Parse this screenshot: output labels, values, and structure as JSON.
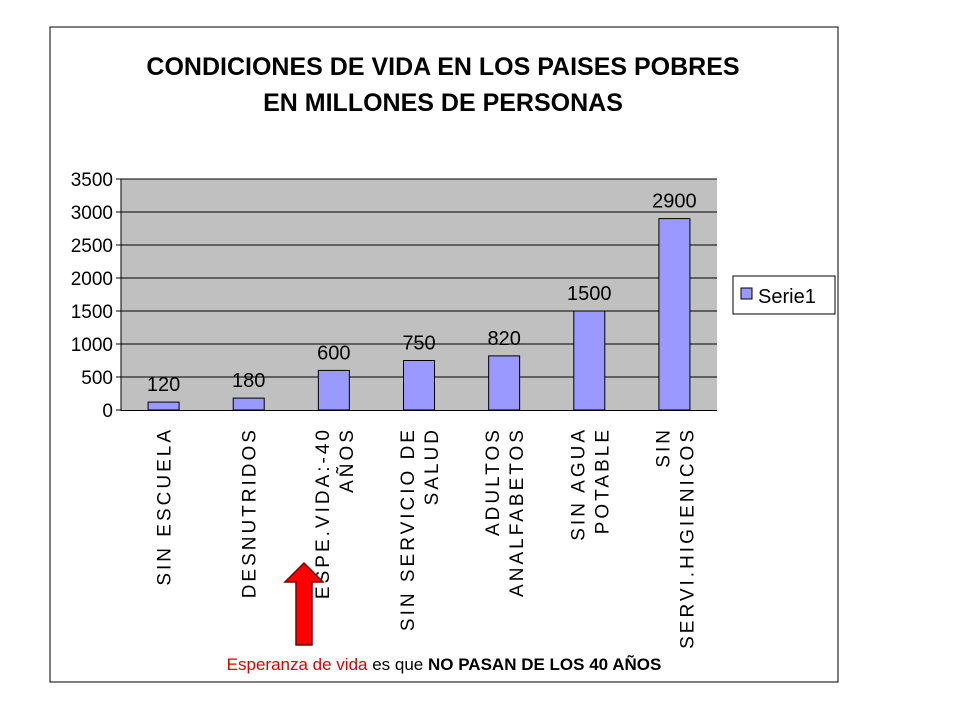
{
  "chart_data": {
    "type": "bar",
    "title": [
      "CONDICIONES DE VIDA EN LOS PAISES POBRES",
      "EN MILLONES DE PERSONAS"
    ],
    "categories": [
      [
        "SIN ESCUELA"
      ],
      [
        "DESNUTRIDOS"
      ],
      [
        "ESPE.VIDA:-40",
        "AÑOS"
      ],
      [
        "SIN SERVICIO DE",
        "SALUD"
      ],
      [
        "ADULTOS",
        "ANALFABETOS"
      ],
      [
        "SIN AGUA",
        "POTABLE"
      ],
      [
        "SIN",
        "SERVI.HIGIENICOS"
      ]
    ],
    "series": [
      {
        "name": "Serie1",
        "values": [
          120,
          180,
          600,
          750,
          820,
          1500,
          2900
        ],
        "color": "#9999ff"
      }
    ],
    "ylim": [
      0,
      3500
    ],
    "yticks": [
      0,
      500,
      1000,
      1500,
      2000,
      2500,
      3000,
      3500
    ],
    "grid": true,
    "legend_position": "right",
    "plot_background": "#c0c0c0"
  },
  "annotation": {
    "part1": "Esperanza de vida",
    "part2": " es que ",
    "part3": "NO PASAN DE LOS 40 AÑOS",
    "arrow_color": "#ff0000"
  }
}
